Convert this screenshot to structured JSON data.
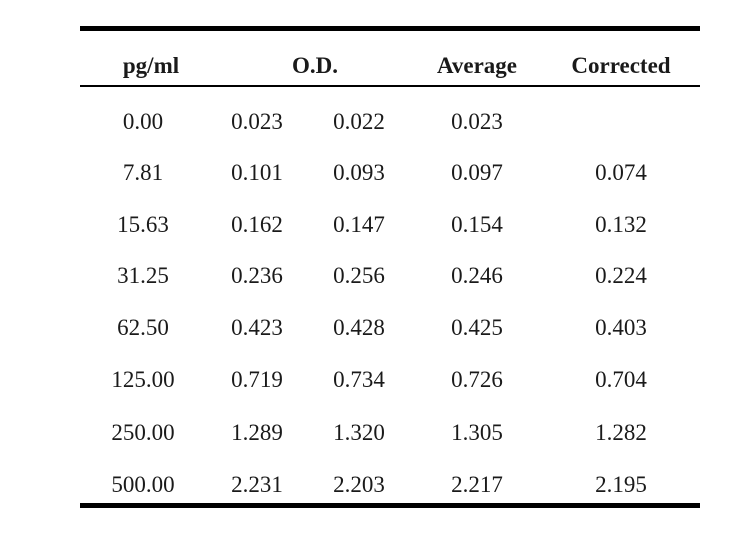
{
  "headers": {
    "conc": "pg/ml",
    "od": "O.D.",
    "avg": "Average",
    "corr": "Corrected"
  },
  "rows": [
    {
      "conc": "0.00",
      "od1": "0.023",
      "od2": "0.022",
      "avg": "0.023",
      "corr": ""
    },
    {
      "conc": "7.81",
      "od1": "0.101",
      "od2": "0.093",
      "avg": "0.097",
      "corr": "0.074"
    },
    {
      "conc": "15.63",
      "od1": "0.162",
      "od2": "0.147",
      "avg": "0.154",
      "corr": "0.132"
    },
    {
      "conc": "31.25",
      "od1": "0.236",
      "od2": "0.256",
      "avg": "0.246",
      "corr": "0.224"
    },
    {
      "conc": "62.50",
      "od1": "0.423",
      "od2": "0.428",
      "avg": "0.425",
      "corr": "0.403"
    },
    {
      "conc": "125.00",
      "od1": "0.719",
      "od2": "0.734",
      "avg": "0.726",
      "corr": "0.704"
    },
    {
      "conc": "250.00",
      "od1": "1.289",
      "od2": "1.320",
      "avg": "1.305",
      "corr": "1.282"
    },
    {
      "conc": "500.00",
      "od1": "2.231",
      "od2": "2.203",
      "avg": "2.217",
      "corr": "2.195"
    }
  ]
}
